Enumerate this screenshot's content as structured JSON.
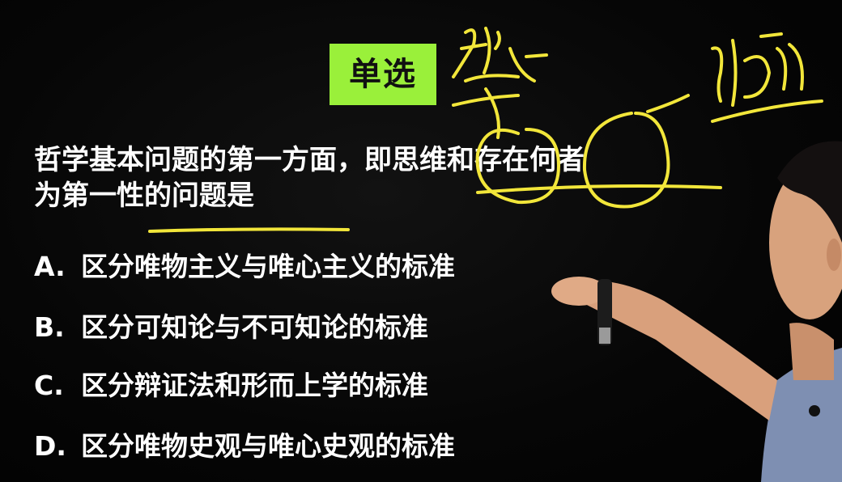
{
  "badge": {
    "label": "单选"
  },
  "question": {
    "line1": "哲学基本问题的第一方面，即思维和存在何者",
    "line2": "为第一性的问题是"
  },
  "options": [
    {
      "letter": "A.",
      "text": "区分唯物主义与唯心主义的标准"
    },
    {
      "letter": "B.",
      "text": "区分可知论与不可知论的标准"
    },
    {
      "letter": "C.",
      "text": "区分辩证法和形而上学的标准"
    },
    {
      "letter": "D.",
      "text": "区分唯物史观与唯心史观的标准"
    }
  ],
  "colors": {
    "background": "#050505",
    "badge": "#9af03a",
    "text": "#ffffff",
    "annotation": "#f2e63a"
  }
}
